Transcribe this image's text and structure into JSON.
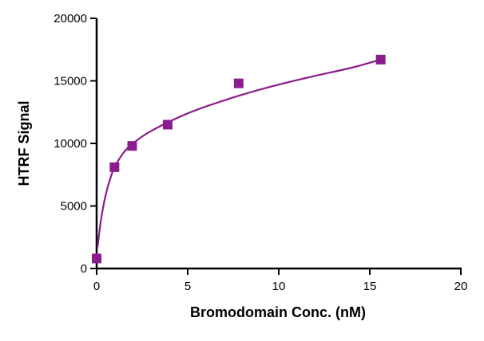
{
  "chart_data": {
    "type": "scatter",
    "title": "",
    "xlabel": "Bromodomain Conc. (nM)",
    "ylabel": "HTRF Signal",
    "xlim": [
      0,
      20
    ],
    "ylim": [
      0,
      20000
    ],
    "x_ticks": [
      "0",
      "5",
      "10",
      "15",
      "20"
    ],
    "y_ticks": [
      "0",
      "5000",
      "10000",
      "15000",
      "20000"
    ],
    "grid": false,
    "legend": "none",
    "series": [
      {
        "x": [
          0,
          0.98,
          1.95,
          3.9,
          7.8,
          15.6
        ],
        "y": [
          800,
          8100,
          9800,
          11500,
          14800,
          16700
        ]
      }
    ],
    "fit_curve": {
      "x": [
        0.05,
        0.25,
        0.5,
        0.75,
        1,
        1.5,
        2,
        2.5,
        3,
        4,
        5,
        6,
        8,
        10,
        12,
        14,
        15.6
      ],
      "y": [
        1700,
        4000,
        5900,
        7200,
        8150,
        9300,
        10000,
        10550,
        11000,
        11750,
        12400,
        12950,
        13900,
        14700,
        15400,
        16050,
        16700
      ]
    },
    "colors": {
      "marker": "#8B1C8C",
      "curve": "#8B1C8C",
      "axis": "#000000"
    }
  }
}
